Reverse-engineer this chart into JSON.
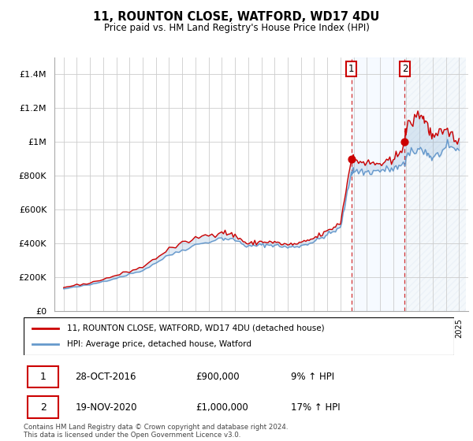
{
  "title": "11, ROUNTON CLOSE, WATFORD, WD17 4DU",
  "subtitle": "Price paid vs. HM Land Registry's House Price Index (HPI)",
  "legend_entries": [
    "11, ROUNTON CLOSE, WATFORD, WD17 4DU (detached house)",
    "HPI: Average price, detached house, Watford"
  ],
  "transaction1": {
    "label": "1",
    "date": "28-OCT-2016",
    "price": "£900,000",
    "hpi": "9% ↑ HPI",
    "year": 2016.83
  },
  "transaction2": {
    "label": "2",
    "date": "19-NOV-2020",
    "price": "£1,000,000",
    "hpi": "17% ↑ HPI",
    "year": 2020.88
  },
  "footnote": "Contains HM Land Registry data © Crown copyright and database right 2024.\nThis data is licensed under the Open Government Licence v3.0.",
  "ylim": [
    0,
    1500000
  ],
  "yticks": [
    0,
    200000,
    400000,
    600000,
    800000,
    1000000,
    1200000,
    1400000
  ],
  "price_color": "#cc0000",
  "hpi_color": "#6699cc",
  "hpi_fill_color": "#aabbdd",
  "vline_color": "#cc0000",
  "background_color": "#ffffff",
  "grid_color": "#cccccc",
  "shade_color": "#ddeeff",
  "hatch_color": "#ccddee"
}
